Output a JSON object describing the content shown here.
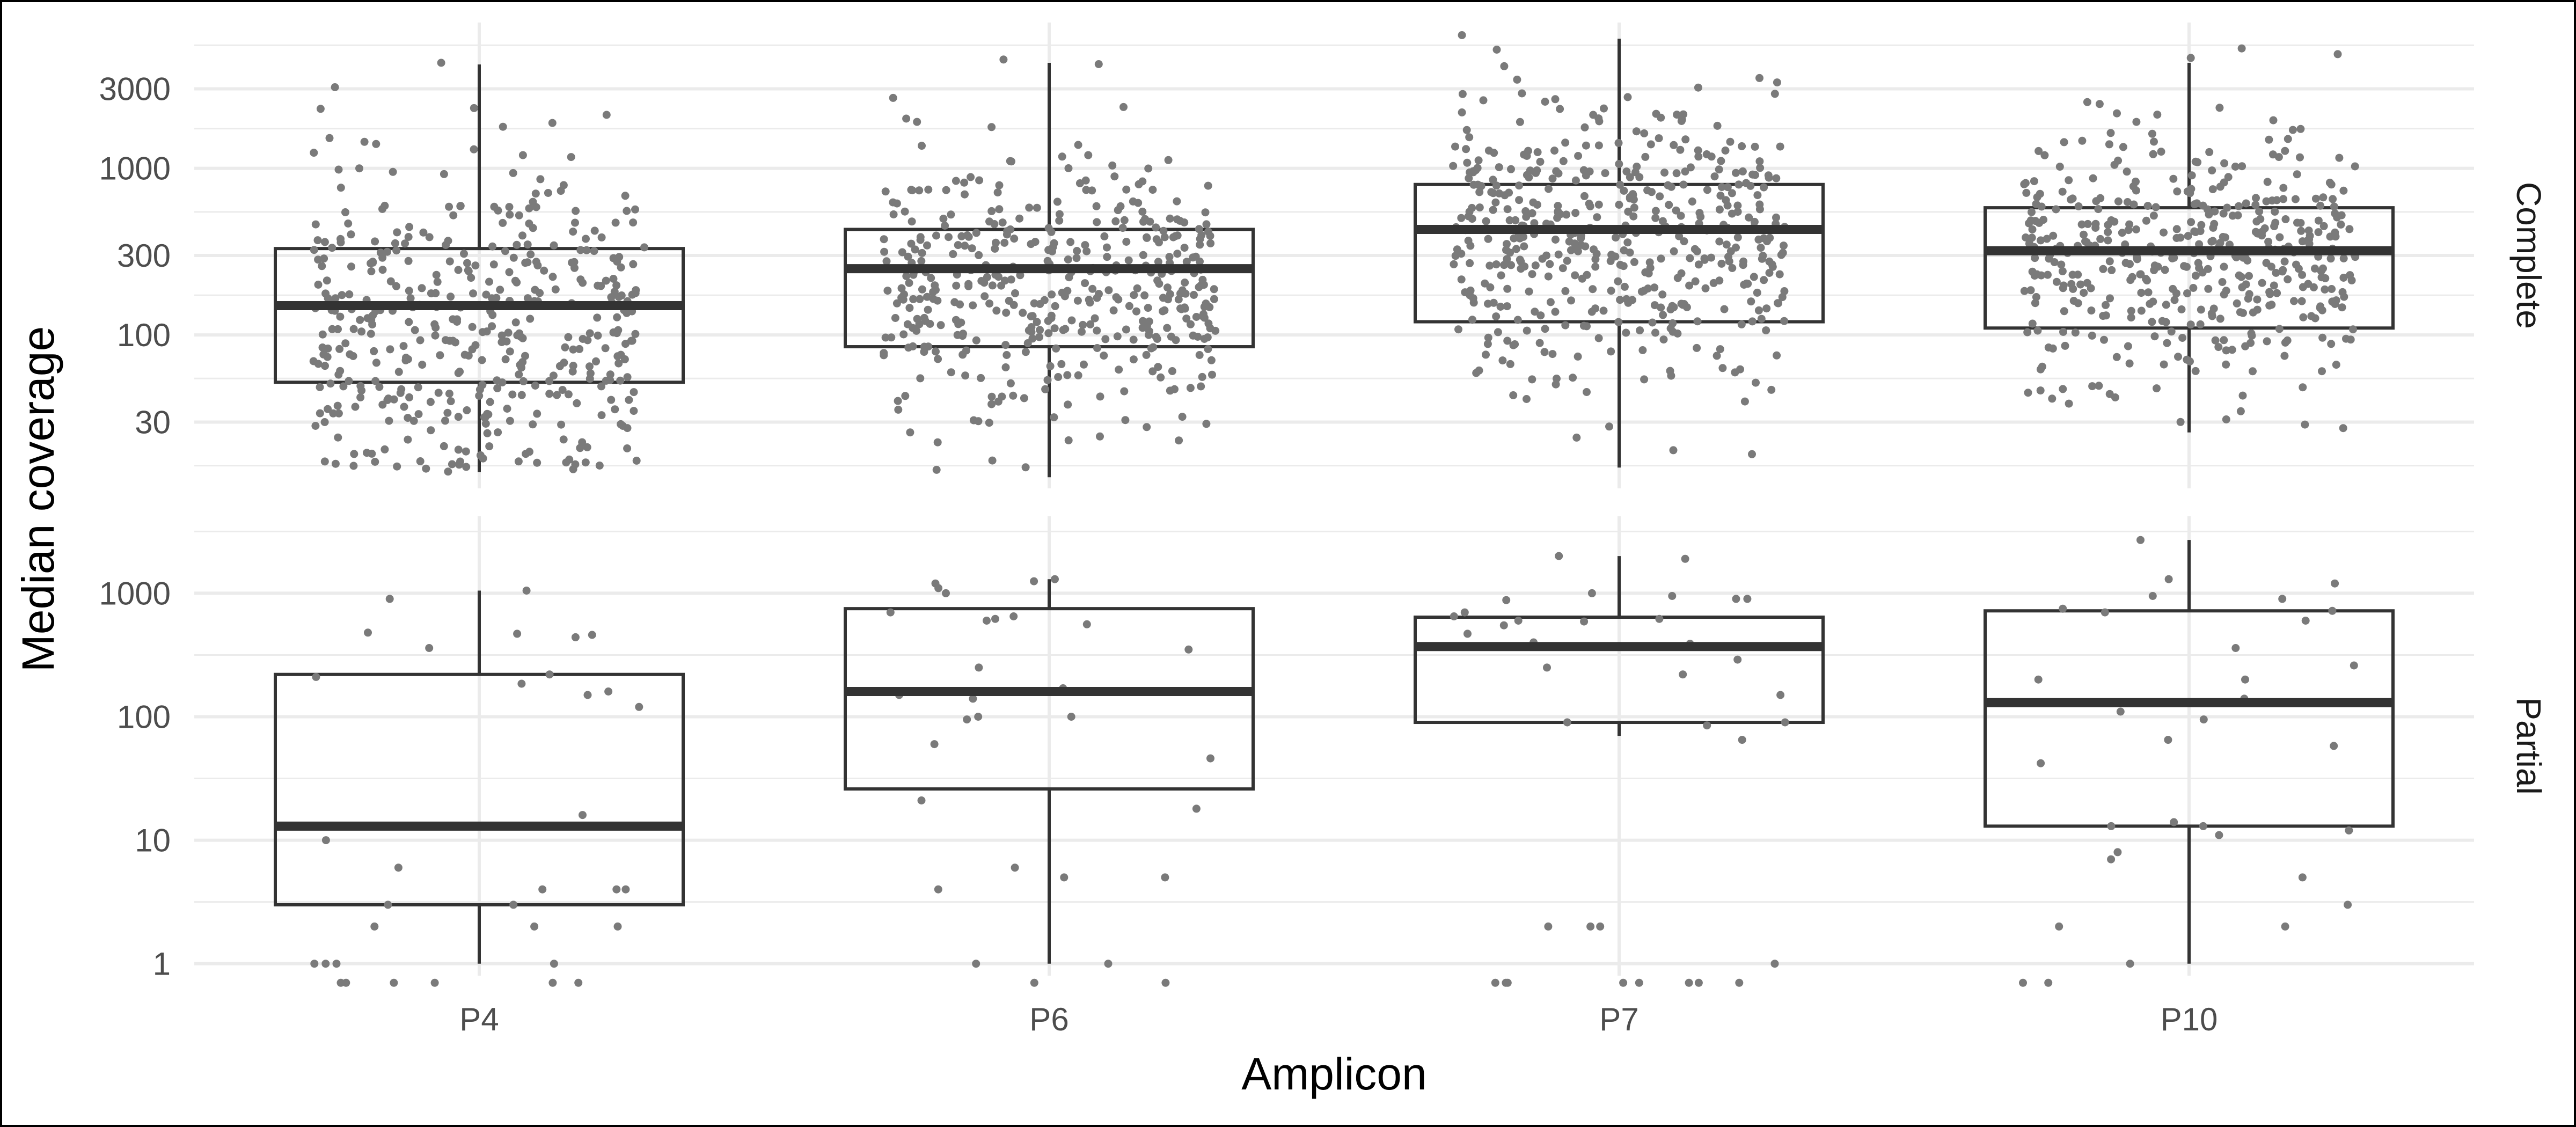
{
  "chart_data": {
    "type": "boxplot",
    "xlabel": "Amplicon",
    "ylabel": "Median coverage",
    "categories": [
      "P4",
      "P6",
      "P7",
      "P10"
    ],
    "y_scale": "log10",
    "grid": true,
    "legend": "none",
    "colors": {
      "points": "#7a7a7a",
      "box": "#333333",
      "grid": "#ebebeb",
      "frame": "#000000"
    },
    "facets": [
      {
        "strip_label": "Complete",
        "ylim": [
          12,
          7500
        ],
        "y_ticks": [
          30,
          100,
          300,
          1000,
          3000
        ],
        "boxes": [
          {
            "category": "P4",
            "whisker_low": 15,
            "q1": 52,
            "median": 150,
            "q3": 330,
            "whisker_high": 4200
          },
          {
            "category": "P6",
            "whisker_low": 14,
            "q1": 85,
            "median": 250,
            "q3": 430,
            "whisker_high": 4300
          },
          {
            "category": "P7",
            "whisker_low": 16,
            "q1": 120,
            "median": 430,
            "q3": 800,
            "whisker_high": 6000
          },
          {
            "category": "P10",
            "whisker_low": 26,
            "q1": 110,
            "median": 320,
            "q3": 580,
            "whisker_high": 4300
          }
        ],
        "points": [
          {
            "category": "P4",
            "n": 420,
            "log_mean": 2.05,
            "log_sd": 0.48,
            "outliers": [
              4300,
              2300,
              1400,
              1300,
              1200,
              1000
            ]
          },
          {
            "category": "P6",
            "n": 420,
            "log_mean": 2.25,
            "log_sd": 0.42,
            "outliers": [
              4500,
              1900,
              1200,
              1100
            ]
          },
          {
            "category": "P7",
            "n": 460,
            "log_mean": 2.55,
            "log_sd": 0.42,
            "outliers": [
              6300,
              4100,
              2800,
              2600,
              2100,
              1800
            ]
          },
          {
            "category": "P10",
            "n": 440,
            "log_mean": 2.45,
            "log_sd": 0.38,
            "outliers": [
              4600,
              2100,
              1900,
              1700,
              1500
            ]
          }
        ]
      },
      {
        "strip_label": "Partial",
        "ylim": [
          0.8,
          4200
        ],
        "y_ticks": [
          1,
          10,
          100,
          1000
        ],
        "boxes": [
          {
            "category": "P4",
            "whisker_low": 1,
            "q1": 3,
            "median": 13,
            "q3": 220,
            "whisker_high": 1050
          },
          {
            "category": "P6",
            "whisker_low": 1,
            "q1": 26,
            "median": 160,
            "q3": 750,
            "whisker_high": 1300
          },
          {
            "category": "P7",
            "whisker_low": 70,
            "q1": 90,
            "median": 370,
            "q3": 640,
            "whisker_high": 2000
          },
          {
            "category": "P10",
            "whisker_low": 1,
            "q1": 13,
            "median": 130,
            "q3": 720,
            "whisker_high": 2700
          }
        ],
        "points": [
          {
            "category": "P4",
            "values": [
              1050,
              900,
              480,
              470,
              460,
              440,
              360,
              220,
              210,
              185,
              160,
              150,
              120,
              16,
              10,
              6,
              4,
              4,
              4,
              3,
              3,
              2,
              2,
              2,
              1,
              1,
              1,
              1,
              0.7,
              0.7,
              0.7,
              0.7,
              0.7,
              0.7
            ]
          },
          {
            "category": "P6",
            "values": [
              1300,
              1250,
              1200,
              1100,
              1000,
              700,
              650,
              620,
              600,
              560,
              350,
              250,
              170,
              160,
              150,
              140,
              100,
              100,
              95,
              60,
              46,
              21,
              18,
              6,
              5,
              5,
              4,
              1,
              1,
              0.7,
              0.7
            ]
          },
          {
            "category": "P7",
            "values": [
              2000,
              1900,
              1000,
              950,
              900,
              900,
              880,
              700,
              650,
              620,
              600,
              590,
              550,
              470,
              400,
              390,
              370,
              290,
              250,
              220,
              150,
              90,
              90,
              85,
              65,
              2,
              2,
              2,
              1,
              0.7,
              0.7,
              0.7,
              0.7,
              0.7,
              0.7,
              0.7,
              0.7
            ]
          },
          {
            "category": "P10",
            "values": [
              2700,
              1300,
              1200,
              950,
              900,
              750,
              720,
              700,
              600,
              360,
              260,
              200,
              200,
              140,
              130,
              110,
              95,
              65,
              58,
              42,
              14,
              13,
              13,
              12,
              11,
              8,
              7,
              5,
              3,
              2,
              2,
              1,
              0.7,
              0.7
            ]
          }
        ]
      }
    ]
  }
}
